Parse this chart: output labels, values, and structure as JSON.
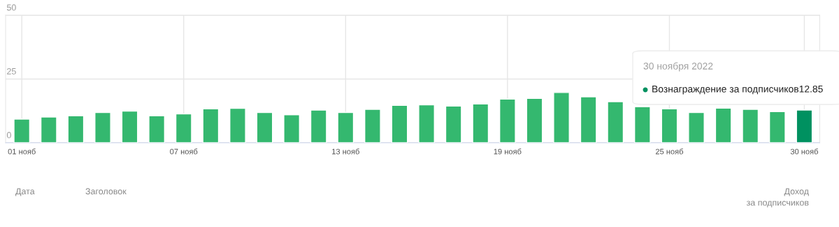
{
  "chart_data": {
    "type": "bar",
    "categories": [
      "01 нояб",
      null,
      null,
      null,
      null,
      null,
      "07 нояб",
      null,
      null,
      null,
      null,
      null,
      "13 нояб",
      null,
      null,
      null,
      null,
      null,
      "19 нояб",
      null,
      null,
      null,
      null,
      null,
      "25 нояб",
      null,
      null,
      null,
      null,
      "30 нояб"
    ],
    "values": [
      9.3,
      10.1,
      10.6,
      11.9,
      12.4,
      10.6,
      11.3,
      13.3,
      13.5,
      11.9,
      11.0,
      12.8,
      11.9,
      13.1,
      14.7,
      14.9,
      14.4,
      15.2,
      17.1,
      17.4,
      19.7,
      18.0,
      16.1,
      14.1,
      13.3,
      11.9,
      13.6,
      13.1,
      12.2,
      12.85
    ],
    "colors": [
      "#34b86f",
      "#34b86f",
      "#34b86f",
      "#34b86f",
      "#34b86f",
      "#34b86f",
      "#34b86f",
      "#34b86f",
      "#34b86f",
      "#34b86f",
      "#34b86f",
      "#34b86f",
      "#34b86f",
      "#34b86f",
      "#34b86f",
      "#34b86f",
      "#34b86f",
      "#34b86f",
      "#34b86f",
      "#34b86f",
      "#34b86f",
      "#34b86f",
      "#34b86f",
      "#34b86f",
      "#34b86f",
      "#34b86f",
      "#34b86f",
      "#34b86f",
      "#34b86f",
      "#009160"
    ],
    "ylim": [
      0,
      50
    ],
    "yticks": [
      0,
      25,
      50
    ],
    "grid": true,
    "legend": false,
    "annotations": [
      "30 ноября 2022",
      "Вознаграждение за подписчиков12.85",
      "Дата",
      "Заголовок",
      "Доход\nза подписчиков"
    ]
  }
}
